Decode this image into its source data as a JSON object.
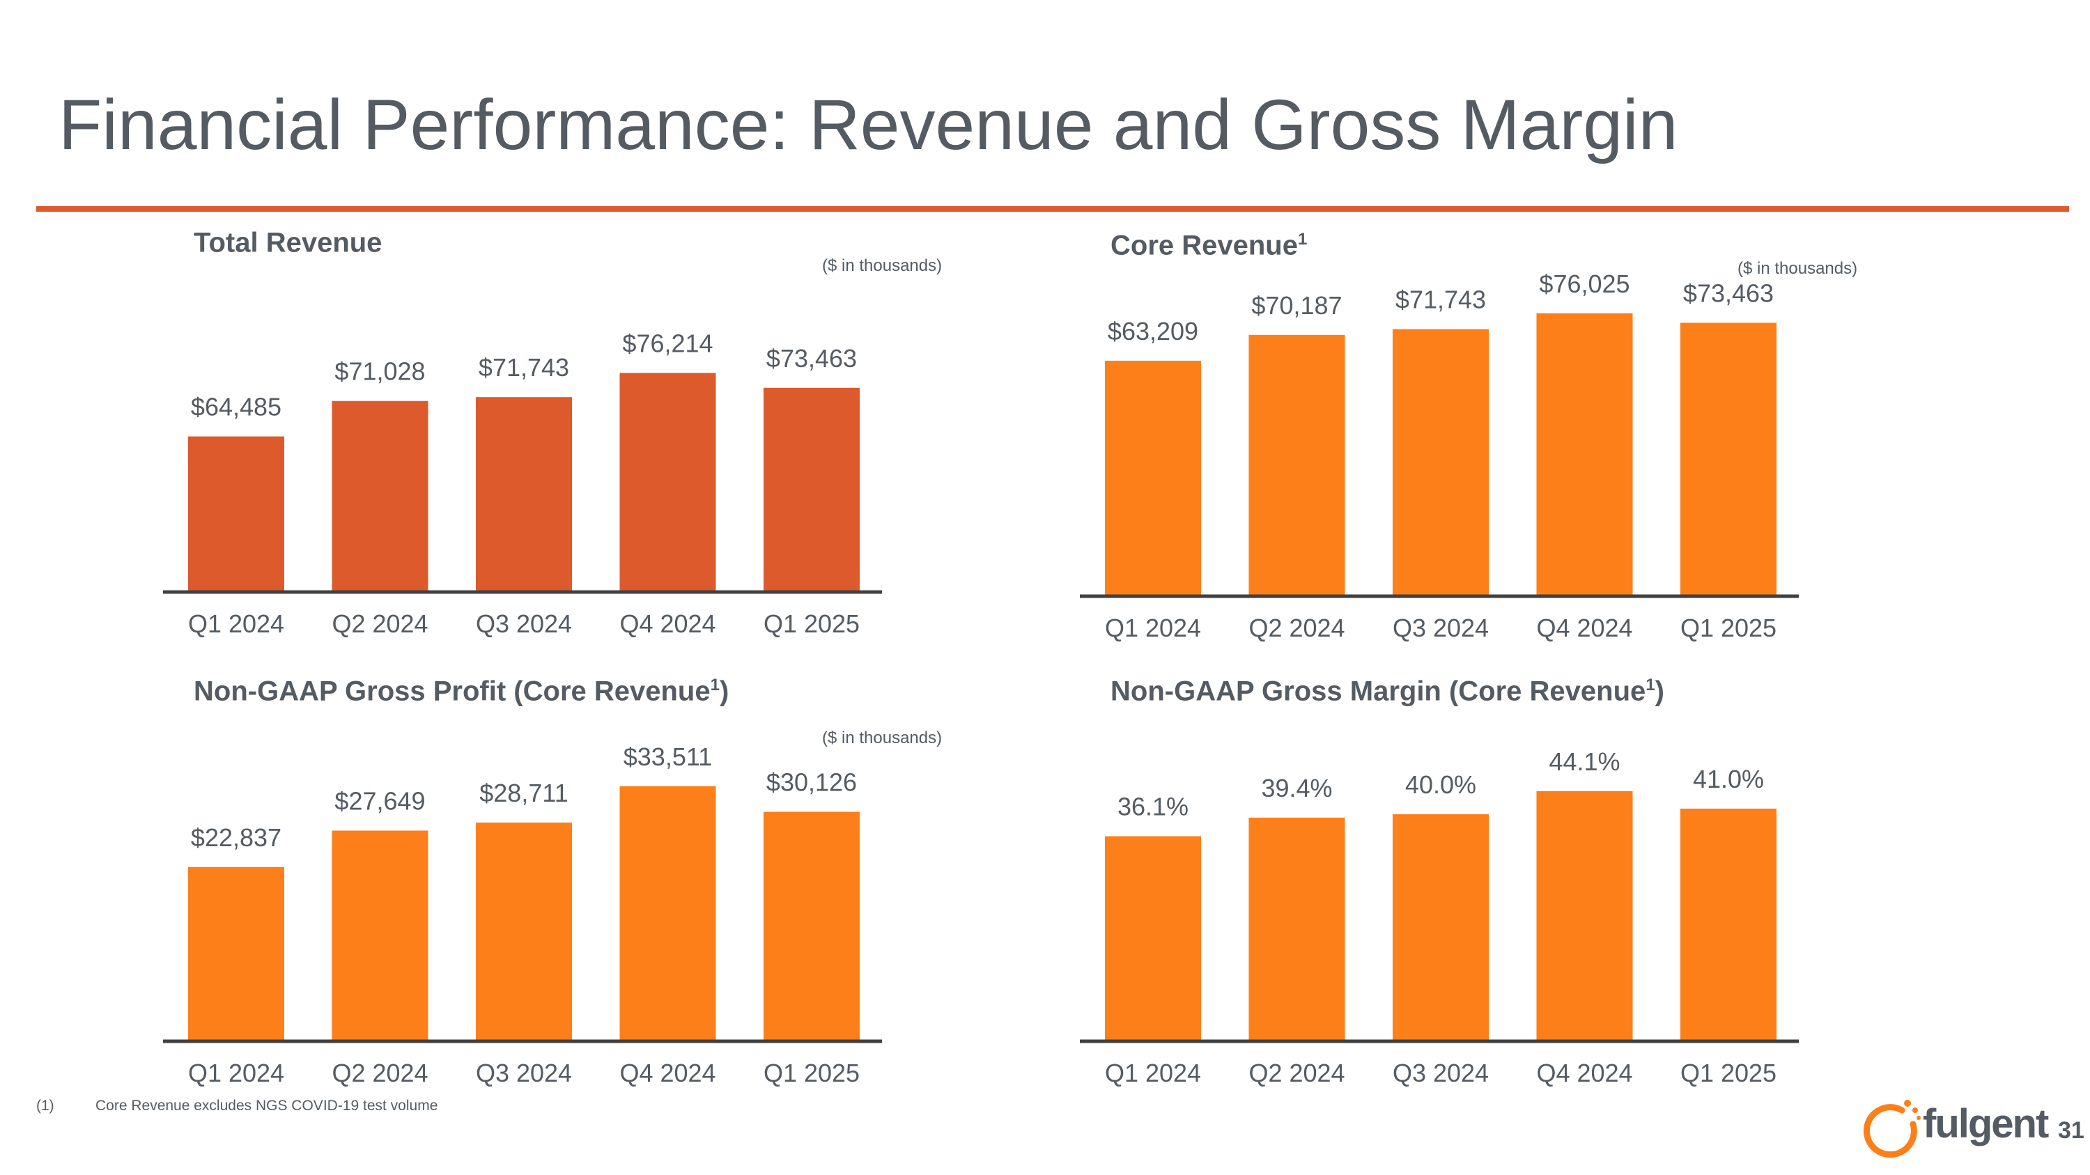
{
  "slide": {
    "title": "Financial Performance: Revenue and Gross Margin",
    "page_number": "31",
    "footnote_marker": "(1)",
    "footnote_text": "Core Revenue excludes NGS COVID-19 test volume",
    "logo_text": "fulgent"
  },
  "colors": {
    "accent_red": "#dc5a2b",
    "accent_orange": "#fd7f1a",
    "axis": "#404040",
    "text": "#545b63"
  },
  "panels": {
    "total_revenue": {
      "title": "Total Revenue",
      "superscript": "",
      "suffix": "",
      "unit_note": "($ in thousands)"
    },
    "core_revenue": {
      "title": "Core Revenue",
      "superscript": "1",
      "suffix": "",
      "unit_note": "($ in thousands)"
    },
    "gross_profit": {
      "title": "Non-GAAP Gross Profit (Core Revenue",
      "superscript": "1",
      "suffix": ")",
      "unit_note": "($ in thousands)"
    },
    "gross_margin": {
      "title": "Non-GAAP Gross Margin (Core Revenue",
      "superscript": "1",
      "suffix": ")",
      "unit_note": ""
    }
  },
  "chart_data": [
    {
      "id": "total_revenue",
      "type": "bar",
      "title": "Total Revenue",
      "categories": [
        "Q1 2024",
        "Q2 2024",
        "Q3 2024",
        "Q4 2024",
        "Q1 2025"
      ],
      "values": [
        64485,
        71028,
        71743,
        76214,
        73463
      ],
      "labels": [
        "$64,485",
        "$71,028",
        "$71,743",
        "$76,214",
        "$73,463"
      ],
      "ylim": [
        36000,
        80000
      ],
      "color": "#dc5a2b",
      "xlabel": "",
      "ylabel": ""
    },
    {
      "id": "core_revenue",
      "type": "bar",
      "title": "Core Revenue",
      "categories": [
        "Q1 2024",
        "Q2 2024",
        "Q3 2024",
        "Q4 2024",
        "Q1 2025"
      ],
      "values": [
        63209,
        70187,
        71743,
        76025,
        73463
      ],
      "labels": [
        "$63,209",
        "$70,187",
        "$71,743",
        "$76,025",
        "$73,463"
      ],
      "ylim": [
        0,
        82000
      ],
      "color": "#fd7f1a",
      "xlabel": "",
      "ylabel": ""
    },
    {
      "id": "gross_profit",
      "type": "bar",
      "title": "Non-GAAP Gross Profit (Core Revenue)",
      "categories": [
        "Q1 2024",
        "Q2 2024",
        "Q3 2024",
        "Q4 2024",
        "Q1 2025"
      ],
      "values": [
        22837,
        27649,
        28711,
        33511,
        30126
      ],
      "labels": [
        "$22,837",
        "$27,649",
        "$28,711",
        "$33,511",
        "$30,126"
      ],
      "ylim": [
        0,
        38000
      ],
      "color": "#fd7f1a",
      "xlabel": "",
      "ylabel": ""
    },
    {
      "id": "gross_margin",
      "type": "bar",
      "title": "Non-GAAP Gross Margin (Core Revenue)",
      "categories": [
        "Q1 2024",
        "Q2 2024",
        "Q3 2024",
        "Q4 2024",
        "Q1 2025"
      ],
      "values": [
        36.1,
        39.4,
        40.0,
        44.1,
        41.0
      ],
      "labels": [
        "36.1%",
        "39.4%",
        "40.0%",
        "44.1%",
        "41.0%"
      ],
      "ylim": [
        0,
        51
      ],
      "color": "#fd7f1a",
      "xlabel": "",
      "ylabel": ""
    }
  ]
}
